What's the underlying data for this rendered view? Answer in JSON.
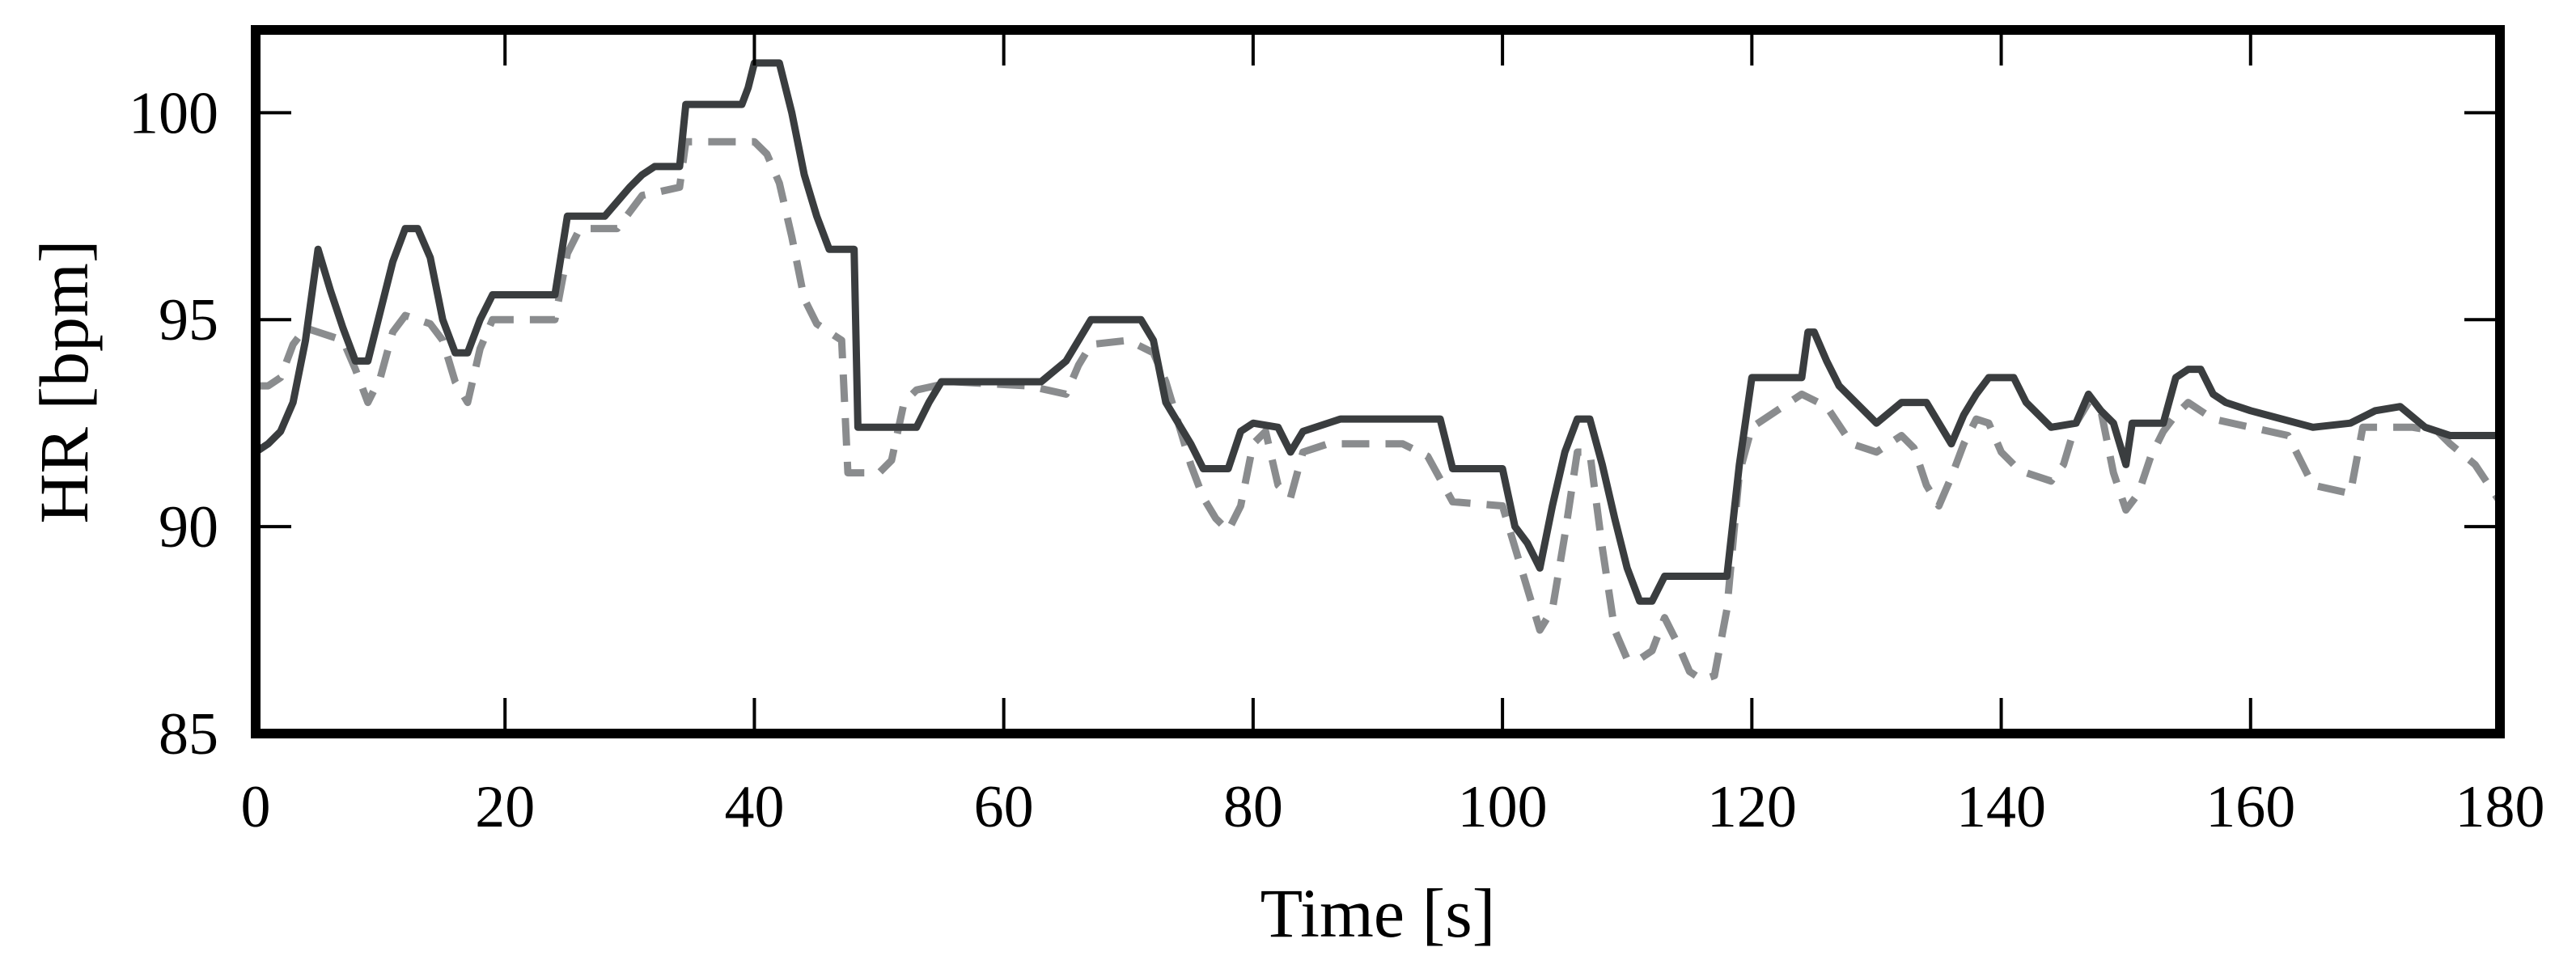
{
  "chart_data": {
    "type": "line",
    "title": "",
    "xlabel": "Time [s]",
    "ylabel": "HR [bpm]",
    "xlim": [
      0,
      180
    ],
    "ylim": [
      85,
      102
    ],
    "xticks": [
      "0",
      "20",
      "40",
      "60",
      "80",
      "100",
      "120",
      "140",
      "160",
      "180"
    ],
    "yticks": [
      "85",
      "90",
      "95",
      "100"
    ],
    "grid": false,
    "legend": "none",
    "series": [
      {
        "style": "solid",
        "color": "#3a3d3f",
        "points": [
          [
            0,
            91.8
          ],
          [
            1,
            92.0
          ],
          [
            2,
            92.3
          ],
          [
            3,
            93.0
          ],
          [
            4,
            94.5
          ],
          [
            5,
            96.7
          ],
          [
            6,
            95.7
          ],
          [
            7,
            94.8
          ],
          [
            8,
            94.0
          ],
          [
            9,
            94.0
          ],
          [
            10,
            95.2
          ],
          [
            11,
            96.4
          ],
          [
            12,
            97.2
          ],
          [
            13,
            97.2
          ],
          [
            14,
            96.5
          ],
          [
            15,
            95.0
          ],
          [
            16,
            94.2
          ],
          [
            17,
            94.2
          ],
          [
            18,
            95.0
          ],
          [
            19,
            95.6
          ],
          [
            20,
            95.6
          ],
          [
            24,
            95.6
          ],
          [
            25,
            97.5
          ],
          [
            28,
            97.5
          ],
          [
            30,
            98.2
          ],
          [
            31,
            98.5
          ],
          [
            32,
            98.7
          ],
          [
            34,
            98.7
          ],
          [
            34.5,
            100.2
          ],
          [
            39,
            100.2
          ],
          [
            39.5,
            100.6
          ],
          [
            40,
            101.2
          ],
          [
            42,
            101.2
          ],
          [
            43,
            100.0
          ],
          [
            44,
            98.5
          ],
          [
            45,
            97.5
          ],
          [
            46,
            96.7
          ],
          [
            48,
            96.7
          ],
          [
            48.3,
            92.4
          ],
          [
            53,
            92.4
          ],
          [
            54,
            93.0
          ],
          [
            55,
            93.5
          ],
          [
            63,
            93.5
          ],
          [
            65,
            94.0
          ],
          [
            66,
            94.5
          ],
          [
            67,
            95.0
          ],
          [
            71,
            95.0
          ],
          [
            72,
            94.5
          ],
          [
            73,
            93.0
          ],
          [
            74,
            92.5
          ],
          [
            75,
            92.0
          ],
          [
            76,
            91.4
          ],
          [
            78,
            91.4
          ],
          [
            79,
            92.3
          ],
          [
            80,
            92.5
          ],
          [
            82,
            92.4
          ],
          [
            83,
            91.8
          ],
          [
            84,
            92.3
          ],
          [
            87,
            92.6
          ],
          [
            91,
            92.6
          ],
          [
            95,
            92.6
          ],
          [
            96,
            91.4
          ],
          [
            100,
            91.4
          ],
          [
            101,
            90.0
          ],
          [
            102,
            89.6
          ],
          [
            103,
            89.0
          ],
          [
            104,
            90.5
          ],
          [
            105,
            91.8
          ],
          [
            106,
            92.6
          ],
          [
            107,
            92.6
          ],
          [
            108,
            91.5
          ],
          [
            109,
            90.2
          ],
          [
            110,
            89.0
          ],
          [
            111,
            88.2
          ],
          [
            112,
            88.2
          ],
          [
            113,
            88.8
          ],
          [
            118,
            88.8
          ],
          [
            119,
            91.5
          ],
          [
            120,
            93.6
          ],
          [
            124,
            93.6
          ],
          [
            124.5,
            94.7
          ],
          [
            125,
            94.7
          ],
          [
            126,
            94.0
          ],
          [
            127,
            93.4
          ],
          [
            129,
            92.8
          ],
          [
            130,
            92.5
          ],
          [
            132,
            93.0
          ],
          [
            134,
            93.0
          ],
          [
            135,
            92.5
          ],
          [
            136,
            92.0
          ],
          [
            137,
            92.7
          ],
          [
            138,
            93.2
          ],
          [
            139,
            93.6
          ],
          [
            141,
            93.6
          ],
          [
            142,
            93.0
          ],
          [
            143,
            92.7
          ],
          [
            144,
            92.4
          ],
          [
            146,
            92.5
          ],
          [
            147,
            93.2
          ],
          [
            148,
            92.8
          ],
          [
            149,
            92.5
          ],
          [
            150,
            91.5
          ],
          [
            150.5,
            92.5
          ],
          [
            153,
            92.5
          ],
          [
            154,
            93.6
          ],
          [
            155,
            93.8
          ],
          [
            156,
            93.8
          ],
          [
            157,
            93.2
          ],
          [
            158,
            93.0
          ],
          [
            160,
            92.8
          ],
          [
            165,
            92.4
          ],
          [
            168,
            92.5
          ],
          [
            170,
            92.8
          ],
          [
            172,
            92.9
          ],
          [
            174,
            92.4
          ],
          [
            176,
            92.2
          ],
          [
            180,
            92.2
          ]
        ]
      },
      {
        "style": "dashed",
        "color": "#8a8c8e",
        "points": [
          [
            0,
            93.4
          ],
          [
            1,
            93.4
          ],
          [
            2,
            93.6
          ],
          [
            3,
            94.4
          ],
          [
            4,
            94.8
          ],
          [
            5,
            94.7
          ],
          [
            6,
            94.6
          ],
          [
            7,
            94.5
          ],
          [
            8,
            93.8
          ],
          [
            9,
            93.0
          ],
          [
            10,
            93.6
          ],
          [
            11,
            94.7
          ],
          [
            12,
            95.1
          ],
          [
            14,
            94.9
          ],
          [
            15,
            94.5
          ],
          [
            16,
            93.5
          ],
          [
            17,
            93.0
          ],
          [
            18,
            94.3
          ],
          [
            19,
            95.0
          ],
          [
            24,
            95.0
          ],
          [
            24.5,
            95.8
          ],
          [
            25,
            96.6
          ],
          [
            26,
            97.2
          ],
          [
            29,
            97.2
          ],
          [
            30,
            97.6
          ],
          [
            31,
            98.0
          ],
          [
            34,
            98.2
          ],
          [
            34.5,
            99.3
          ],
          [
            40,
            99.3
          ],
          [
            41,
            99.0
          ],
          [
            42,
            98.3
          ],
          [
            43,
            97.0
          ],
          [
            44,
            95.5
          ],
          [
            45,
            94.9
          ],
          [
            46,
            94.7
          ],
          [
            47,
            94.5
          ],
          [
            47.5,
            91.3
          ],
          [
            50,
            91.3
          ],
          [
            51,
            91.6
          ],
          [
            52,
            93.0
          ],
          [
            53,
            93.3
          ],
          [
            56,
            93.5
          ],
          [
            62,
            93.4
          ],
          [
            65,
            93.2
          ],
          [
            66,
            93.9
          ],
          [
            67,
            94.4
          ],
          [
            70,
            94.5
          ],
          [
            72,
            94.2
          ],
          [
            73,
            93.5
          ],
          [
            74,
            92.5
          ],
          [
            75,
            91.5
          ],
          [
            76,
            90.7
          ],
          [
            77,
            90.2
          ],
          [
            78,
            89.9
          ],
          [
            79,
            90.5
          ],
          [
            80,
            92.0
          ],
          [
            81,
            92.3
          ],
          [
            82,
            91.0
          ],
          [
            83,
            90.7
          ],
          [
            84,
            91.8
          ],
          [
            86,
            92.0
          ],
          [
            90,
            92.0
          ],
          [
            92,
            92.0
          ],
          [
            94,
            91.7
          ],
          [
            96,
            90.6
          ],
          [
            100,
            90.5
          ],
          [
            101,
            89.5
          ],
          [
            102,
            88.5
          ],
          [
            103,
            87.5
          ],
          [
            104,
            88.0
          ],
          [
            105,
            89.8
          ],
          [
            106,
            91.8
          ],
          [
            107,
            91.8
          ],
          [
            108,
            89.5
          ],
          [
            109,
            87.5
          ],
          [
            110,
            86.8
          ],
          [
            111,
            86.8
          ],
          [
            112,
            87.0
          ],
          [
            113,
            87.8
          ],
          [
            114,
            87.2
          ],
          [
            115,
            86.5
          ],
          [
            116,
            86.3
          ],
          [
            117,
            86.4
          ],
          [
            118,
            88.0
          ],
          [
            119,
            91.3
          ],
          [
            120,
            92.4
          ],
          [
            122,
            92.8
          ],
          [
            124,
            93.2
          ],
          [
            126,
            92.9
          ],
          [
            128,
            92.0
          ],
          [
            130,
            91.8
          ],
          [
            132,
            92.2
          ],
          [
            133,
            91.9
          ],
          [
            134,
            91.0
          ],
          [
            135,
            90.5
          ],
          [
            136,
            91.2
          ],
          [
            137,
            92.0
          ],
          [
            138,
            92.6
          ],
          [
            139,
            92.5
          ],
          [
            140,
            91.8
          ],
          [
            141,
            91.5
          ],
          [
            142,
            91.3
          ],
          [
            144,
            91.1
          ],
          [
            145,
            91.5
          ],
          [
            146,
            92.5
          ],
          [
            147,
            93.0
          ],
          [
            148,
            92.8
          ],
          [
            149,
            91.3
          ],
          [
            150,
            90.4
          ],
          [
            151,
            90.8
          ],
          [
            152,
            91.7
          ],
          [
            153,
            92.3
          ],
          [
            154,
            92.7
          ],
          [
            155,
            93.0
          ],
          [
            157,
            92.6
          ],
          [
            160,
            92.4
          ],
          [
            163,
            92.2
          ],
          [
            165,
            91.0
          ],
          [
            168,
            90.8
          ],
          [
            169,
            92.4
          ],
          [
            173,
            92.4
          ],
          [
            175,
            92.3
          ],
          [
            176,
            92.0
          ],
          [
            178,
            91.5
          ],
          [
            180,
            90.6
          ]
        ]
      }
    ]
  }
}
